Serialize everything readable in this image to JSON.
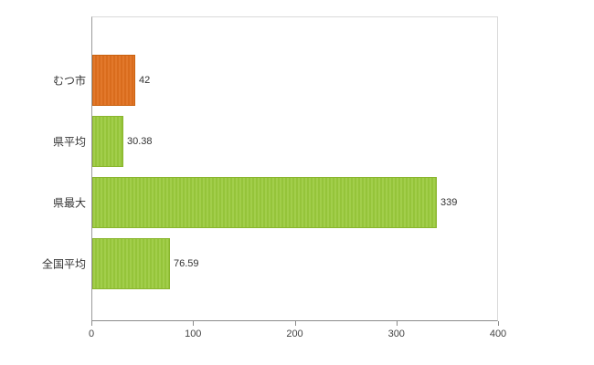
{
  "chart_data": {
    "type": "bar",
    "orientation": "horizontal",
    "title": "",
    "xlabel": "",
    "ylabel": "",
    "categories": [
      "むつ市",
      "県平均",
      "県最大",
      "全国平均"
    ],
    "values": [
      42,
      30.38,
      339,
      76.59
    ],
    "value_labels": [
      "42",
      "30.38",
      "339",
      "76.59"
    ],
    "bar_color_names": [
      "orange",
      "green",
      "green",
      "green"
    ],
    "xlim": [
      0,
      400
    ],
    "x_ticks": [
      0,
      100,
      200,
      300,
      400
    ],
    "x_tick_labels": [
      "0",
      "100",
      "200",
      "300",
      "400"
    ],
    "grid": false,
    "legend": "none"
  },
  "colors": {
    "orange": "#e0701e",
    "green": "#9aca3c",
    "axis": "#8c8c8c",
    "plot_border": "#d9d9d9",
    "text": "#333333",
    "background": "#ffffff"
  }
}
